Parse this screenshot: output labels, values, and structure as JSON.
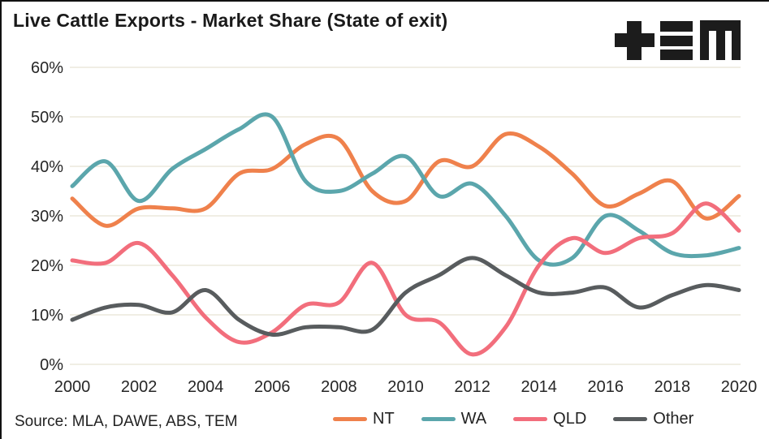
{
  "header": {
    "logo_icon": "tem-logo",
    "logo_text": "TEM"
  },
  "source": {
    "label": "Source: MLA, DAWE, ABS, TEM"
  },
  "colors": {
    "nt": "#EF814C",
    "wa": "#5BA6AC",
    "qld": "#F26E7C",
    "other": "#585C5E",
    "gridline": "#ECE8DB",
    "axis_text": "#262626",
    "title_text": "#1a1a1a",
    "logo": "#1c1c1c"
  },
  "chart_data": {
    "type": "line",
    "title": "Live Cattle Exports - Market Share (State of exit)",
    "xlabel": "",
    "ylabel": "",
    "x": [
      2000,
      2001,
      2002,
      2003,
      2004,
      2005,
      2006,
      2007,
      2008,
      2009,
      2010,
      2011,
      2012,
      2013,
      2014,
      2015,
      2016,
      2017,
      2018,
      2019,
      2020
    ],
    "x_tick_step": 2,
    "ylim": [
      0,
      60
    ],
    "y_ticks": [
      0,
      10,
      20,
      30,
      40,
      50,
      60
    ],
    "y_tick_suffix": "%",
    "grid": "horizontal",
    "smooth": true,
    "legend_position": "bottom",
    "series": [
      {
        "name": "NT",
        "color": "#EF814C",
        "values": [
          33.5,
          28,
          31.5,
          31.5,
          31.5,
          38.5,
          39.5,
          44.5,
          45.5,
          35,
          33,
          41,
          40,
          46.5,
          44,
          38.5,
          32,
          34.5,
          37,
          29.5,
          34
        ]
      },
      {
        "name": "WA",
        "color": "#5BA6AC",
        "values": [
          36,
          41,
          33,
          39.5,
          43.5,
          47.5,
          50,
          37,
          35,
          38.5,
          42,
          34,
          36.5,
          30,
          21,
          21.5,
          30,
          27,
          22.5,
          22,
          23.5
        ]
      },
      {
        "name": "QLD",
        "color": "#F26E7C",
        "values": [
          21,
          20.5,
          24.5,
          18,
          9.5,
          4.5,
          6.5,
          12,
          12.5,
          20.5,
          10,
          8.5,
          2,
          7.5,
          20,
          25.5,
          22.5,
          25.5,
          26.5,
          32.5,
          27
        ]
      },
      {
        "name": "Other",
        "color": "#585C5E",
        "values": [
          9,
          11.5,
          12,
          10.5,
          15,
          9,
          6,
          7.5,
          7.5,
          7,
          14.5,
          18,
          21.5,
          18,
          14.5,
          14.5,
          15.5,
          11.5,
          14,
          16,
          15
        ]
      }
    ]
  }
}
